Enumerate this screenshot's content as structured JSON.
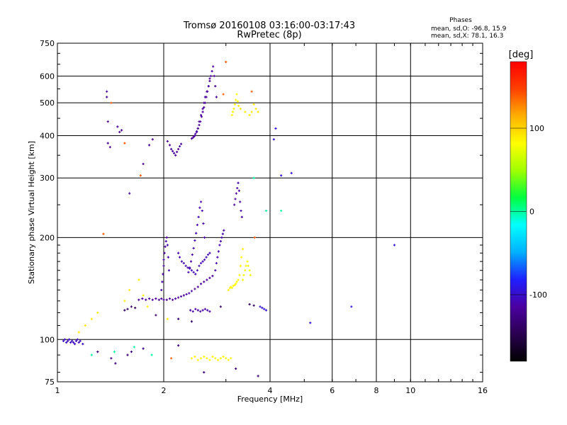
{
  "chart_data": {
    "type": "scatter",
    "title": "Tromsø 20160108 03:16:00-03:17:43",
    "subtitle": "RwPretec (8p)",
    "xlabel": "Frequency [MHz]",
    "ylabel": "Stationary phase Virtual Height [km]",
    "x_scale": "log",
    "y_scale": "log",
    "xlim": [
      1,
      16
    ],
    "ylim": [
      75,
      750
    ],
    "x_ticks": [
      1,
      2,
      4,
      6,
      8,
      10,
      16
    ],
    "x_tick_labels": [
      "1",
      "2",
      "4",
      "6",
      "8",
      "10",
      "16"
    ],
    "y_ticks": [
      75,
      100,
      200,
      300,
      400,
      500,
      600,
      750
    ],
    "y_tick_labels": [
      "75",
      "100",
      "200",
      "300",
      "400",
      "500",
      "600",
      "750"
    ],
    "grid": true,
    "stats": {
      "heading": "Phases",
      "line_o": "mean, sd,O: -96.8, 15.9",
      "line_x": "mean, sd,X:  78.1, 16.3"
    },
    "colorbar": {
      "label": "[deg]",
      "range": [
        -180,
        180
      ],
      "tick_values": [
        100,
        0,
        -100
      ],
      "tick_labels": [
        "100",
        "0",
        "-100"
      ]
    },
    "color_stops": [
      "#000000",
      "#2a0050",
      "#4b00a0",
      "#1f1fff",
      "#00b0ff",
      "#00ffff",
      "#00ff40",
      "#a0ff00",
      "#ffff00",
      "#ffb000",
      "#ff4000",
      "#ff0000"
    ],
    "series": [
      {
        "phase": -103,
        "x": [
          1.04,
          1.05,
          1.06,
          1.07,
          1.08,
          1.09,
          1.1,
          1.11,
          1.12,
          1.13,
          1.14,
          1.15,
          1.16,
          1.18
        ],
        "y": [
          99,
          100,
          98,
          99,
          100,
          98,
          99,
          98,
          97,
          99,
          100,
          98,
          99,
          97
        ]
      },
      {
        "phase": -115,
        "x": [
          1.7,
          1.74,
          1.78,
          1.82,
          1.86,
          1.9,
          1.94,
          1.97,
          2.0,
          2.04,
          2.08,
          2.12,
          2.16,
          2.2,
          2.24,
          2.28,
          2.32,
          2.36,
          2.4,
          2.45,
          2.5,
          2.55,
          2.6,
          2.65,
          2.7,
          2.75
        ],
        "y": [
          131,
          132,
          131,
          132,
          131,
          132,
          131,
          132,
          131,
          131,
          132,
          131,
          132,
          133,
          134,
          135,
          136,
          137,
          139,
          141,
          143,
          146,
          148,
          150,
          152,
          154
        ]
      },
      {
        "phase": -112,
        "x": [
          1.97,
          1.98,
          1.99,
          2.0,
          2.0,
          2.01,
          2.02,
          2.03,
          2.04,
          2.05,
          2.06,
          2.07
        ],
        "y": [
          140,
          148,
          156,
          165,
          172,
          180,
          188,
          195,
          200,
          190,
          175,
          160
        ]
      },
      {
        "phase": -110,
        "x": [
          2.35,
          2.37,
          2.39,
          2.41,
          2.43,
          2.45,
          2.47,
          2.49,
          2.51,
          2.53,
          2.55,
          2.57,
          2.59,
          2.61
        ],
        "y": [
          158,
          163,
          170,
          178,
          186,
          196,
          206,
          218,
          230,
          245,
          255,
          240,
          220,
          200
        ]
      },
      {
        "phase": -108,
        "x": [
          2.2,
          2.22,
          2.25,
          2.28,
          2.31,
          2.34,
          2.37,
          2.4,
          2.43,
          2.46,
          2.49,
          2.52,
          2.55,
          2.58,
          2.61,
          2.64,
          2.67,
          2.7
        ],
        "y": [
          180,
          175,
          170,
          168,
          165,
          163,
          162,
          160,
          158,
          156,
          160,
          165,
          168,
          170,
          172,
          175,
          178,
          180
        ]
      },
      {
        "phase": -111,
        "x": [
          2.8,
          2.82,
          2.84,
          2.86,
          2.88,
          2.9,
          2.92,
          2.94,
          2.96
        ],
        "y": [
          160,
          168,
          175,
          182,
          190,
          195,
          200,
          205,
          210
        ]
      },
      {
        "phase": -113,
        "x": [
          3.17,
          3.19,
          3.21,
          3.23,
          3.25,
          3.27,
          3.29,
          3.31,
          3.33
        ],
        "y": [
          250,
          260,
          270,
          280,
          290,
          275,
          255,
          240,
          230
        ]
      },
      {
        "phase": -115,
        "x": [
          2.4,
          2.42,
          2.44,
          2.46,
          2.48,
          2.5,
          2.52,
          2.54,
          2.56,
          2.58,
          2.6,
          2.62,
          2.64,
          2.66,
          2.68,
          2.7,
          2.72,
          2.74,
          2.76,
          2.78,
          2.8,
          2.82
        ],
        "y": [
          392,
          395,
          398,
          405,
          412,
          420,
          430,
          440,
          455,
          470,
          485,
          500,
          520,
          540,
          560,
          580,
          600,
          620,
          640,
          600,
          560,
          520
        ]
      },
      {
        "phase": -116,
        "x": [
          2.45,
          2.48,
          2.5,
          2.52,
          2.55,
          2.58,
          2.6,
          2.62,
          2.65,
          2.68,
          2.7
        ],
        "y": [
          400,
          410,
          420,
          440,
          460,
          480,
          500,
          520,
          540,
          560,
          590
        ]
      },
      {
        "phase": -118,
        "x": [
          2.05,
          2.08,
          2.1,
          2.12,
          2.14,
          2.16,
          2.18,
          2.2,
          2.22,
          2.24
        ],
        "y": [
          385,
          375,
          365,
          360,
          355,
          350,
          358,
          365,
          372,
          378
        ]
      },
      {
        "phase": -118,
        "x": [
          1.38,
          1.38,
          1.39,
          1.39,
          1.41,
          1.48,
          1.5,
          1.52,
          1.6,
          1.75,
          1.82,
          1.86
        ],
        "y": [
          540,
          520,
          440,
          380,
          370,
          425,
          410,
          415,
          270,
          330,
          375,
          390
        ]
      },
      {
        "phase": -114,
        "x": [
          2.38,
          2.42,
          2.46,
          2.5,
          2.54,
          2.58,
          2.62,
          2.66,
          2.7
        ],
        "y": [
          122,
          121,
          123,
          122,
          121,
          122,
          123,
          122,
          121
        ]
      },
      {
        "phase": 85,
        "x": [
          2.4,
          2.45,
          2.5,
          2.55,
          2.6,
          2.65,
          2.7,
          2.75,
          2.8,
          2.85,
          2.9,
          2.95,
          3.0,
          3.05,
          3.1
        ],
        "y": [
          88,
          89,
          87,
          88,
          89,
          88,
          87,
          89,
          88,
          87,
          88,
          89,
          88,
          87,
          88
        ]
      },
      {
        "phase": 82,
        "x": [
          3.05,
          3.08,
          3.1,
          3.12,
          3.15,
          3.18,
          3.2,
          3.22,
          3.25,
          3.28,
          3.3,
          3.32,
          3.35
        ],
        "y": [
          140,
          142,
          143,
          142,
          144,
          145,
          146,
          148,
          150,
          155,
          165,
          175,
          185
        ]
      },
      {
        "phase": 80,
        "x": [
          3.12,
          3.14,
          3.16,
          3.18,
          3.2,
          3.22,
          3.24,
          3.26
        ],
        "y": [
          460,
          470,
          480,
          495,
          510,
          530,
          505,
          490
        ]
      },
      {
        "phase": 78,
        "x": [
          3.35,
          3.37,
          3.4,
          3.42,
          3.45,
          3.47,
          3.5,
          3.52
        ],
        "y": [
          150,
          155,
          160,
          165,
          170,
          165,
          160,
          155
        ]
      },
      {
        "phase": 90,
        "x": [
          1.15,
          1.2,
          1.25,
          1.3,
          1.55,
          1.6,
          1.7,
          1.75,
          1.8,
          2.05,
          3.3,
          3.4,
          3.5,
          3.55,
          3.6,
          3.65,
          3.7
        ],
        "y": [
          105,
          110,
          115,
          120,
          130,
          140,
          150,
          135,
          125,
          115,
          480,
          470,
          460,
          470,
          495,
          480,
          470
        ]
      },
      {
        "phase": -95,
        "x": [
          3.75,
          3.8,
          3.85,
          3.9,
          4.1,
          4.15,
          4.3,
          4.6,
          5.2,
          6.8,
          9.0
        ],
        "y": [
          125,
          124,
          123,
          122,
          390,
          420,
          305,
          310,
          112,
          125,
          190
        ]
      },
      {
        "phase": -140,
        "x": [
          1.55,
          1.58,
          1.62,
          1.66,
          1.9,
          2.2,
          2.4,
          2.9,
          3.5,
          3.6
        ],
        "y": [
          122,
          123,
          125,
          124,
          118,
          115,
          113,
          125,
          127,
          126
        ]
      },
      {
        "phase": 0,
        "x": [
          1.25,
          1.45,
          1.65,
          1.85,
          3.6,
          3.9,
          4.3
        ],
        "y": [
          90,
          92,
          95,
          90,
          300,
          240,
          240
        ]
      },
      {
        "phase": -128,
        "x": [
          1.3,
          1.42,
          1.46,
          1.58,
          1.62,
          1.75,
          2.2,
          2.6,
          3.2,
          3.7
        ],
        "y": [
          92,
          88,
          85,
          90,
          92,
          94,
          96,
          80,
          82,
          78
        ]
      },
      {
        "phase": 140,
        "x": [
          1.35,
          1.42,
          1.55,
          1.72,
          2.1,
          2.95,
          3.0,
          3.55,
          3.62
        ],
        "y": [
          205,
          500,
          380,
          305,
          88,
          530,
          660,
          540,
          200
        ]
      }
    ]
  }
}
